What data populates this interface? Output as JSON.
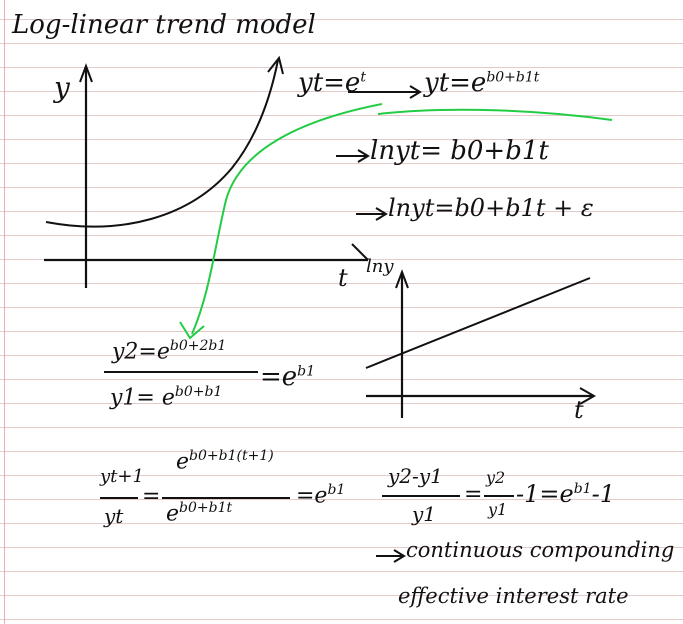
{
  "title": "Log-linear trend model",
  "graph1": {
    "y_label": "y",
    "t_label": "t"
  },
  "graph2": {
    "y_label": "lny",
    "t_label": "t"
  },
  "eq1": {
    "left": "yt=e",
    "left_exp": "t",
    "right": "yt=e",
    "right_exp": "b0+b1t"
  },
  "eq2": {
    "text": "lnyt= b0+b1t"
  },
  "eq3": {
    "text": "lnyt=b0+b1t + ε"
  },
  "ratio1": {
    "num": "y2=e",
    "num_exp": "b0+2b1",
    "den": "y1= e",
    "den_exp": "b0+b1",
    "rhs": "=e",
    "rhs_exp": "b1"
  },
  "ratio2": {
    "num": "yt+1",
    "den": "yt",
    "eq": "=",
    "num2": "e",
    "num2_exp": "b0+b1(t+1)",
    "den2": "e",
    "den2_exp": "b0+b1t",
    "rhs": "=e",
    "rhs_exp": "b1"
  },
  "ratio3": {
    "num": "y2-y1",
    "den": "y1",
    "mid_eq": "=",
    "num2": "y2",
    "den2": "y1",
    "tail": "-1=e",
    "tail_exp": "b1",
    "tail_end": "-1"
  },
  "note": {
    "line1": "continuous compounding",
    "line2": "effective interest rate"
  },
  "colors": {
    "ink": "#111111",
    "arrow": "#22cc44",
    "rule": "#e8c9c9"
  }
}
